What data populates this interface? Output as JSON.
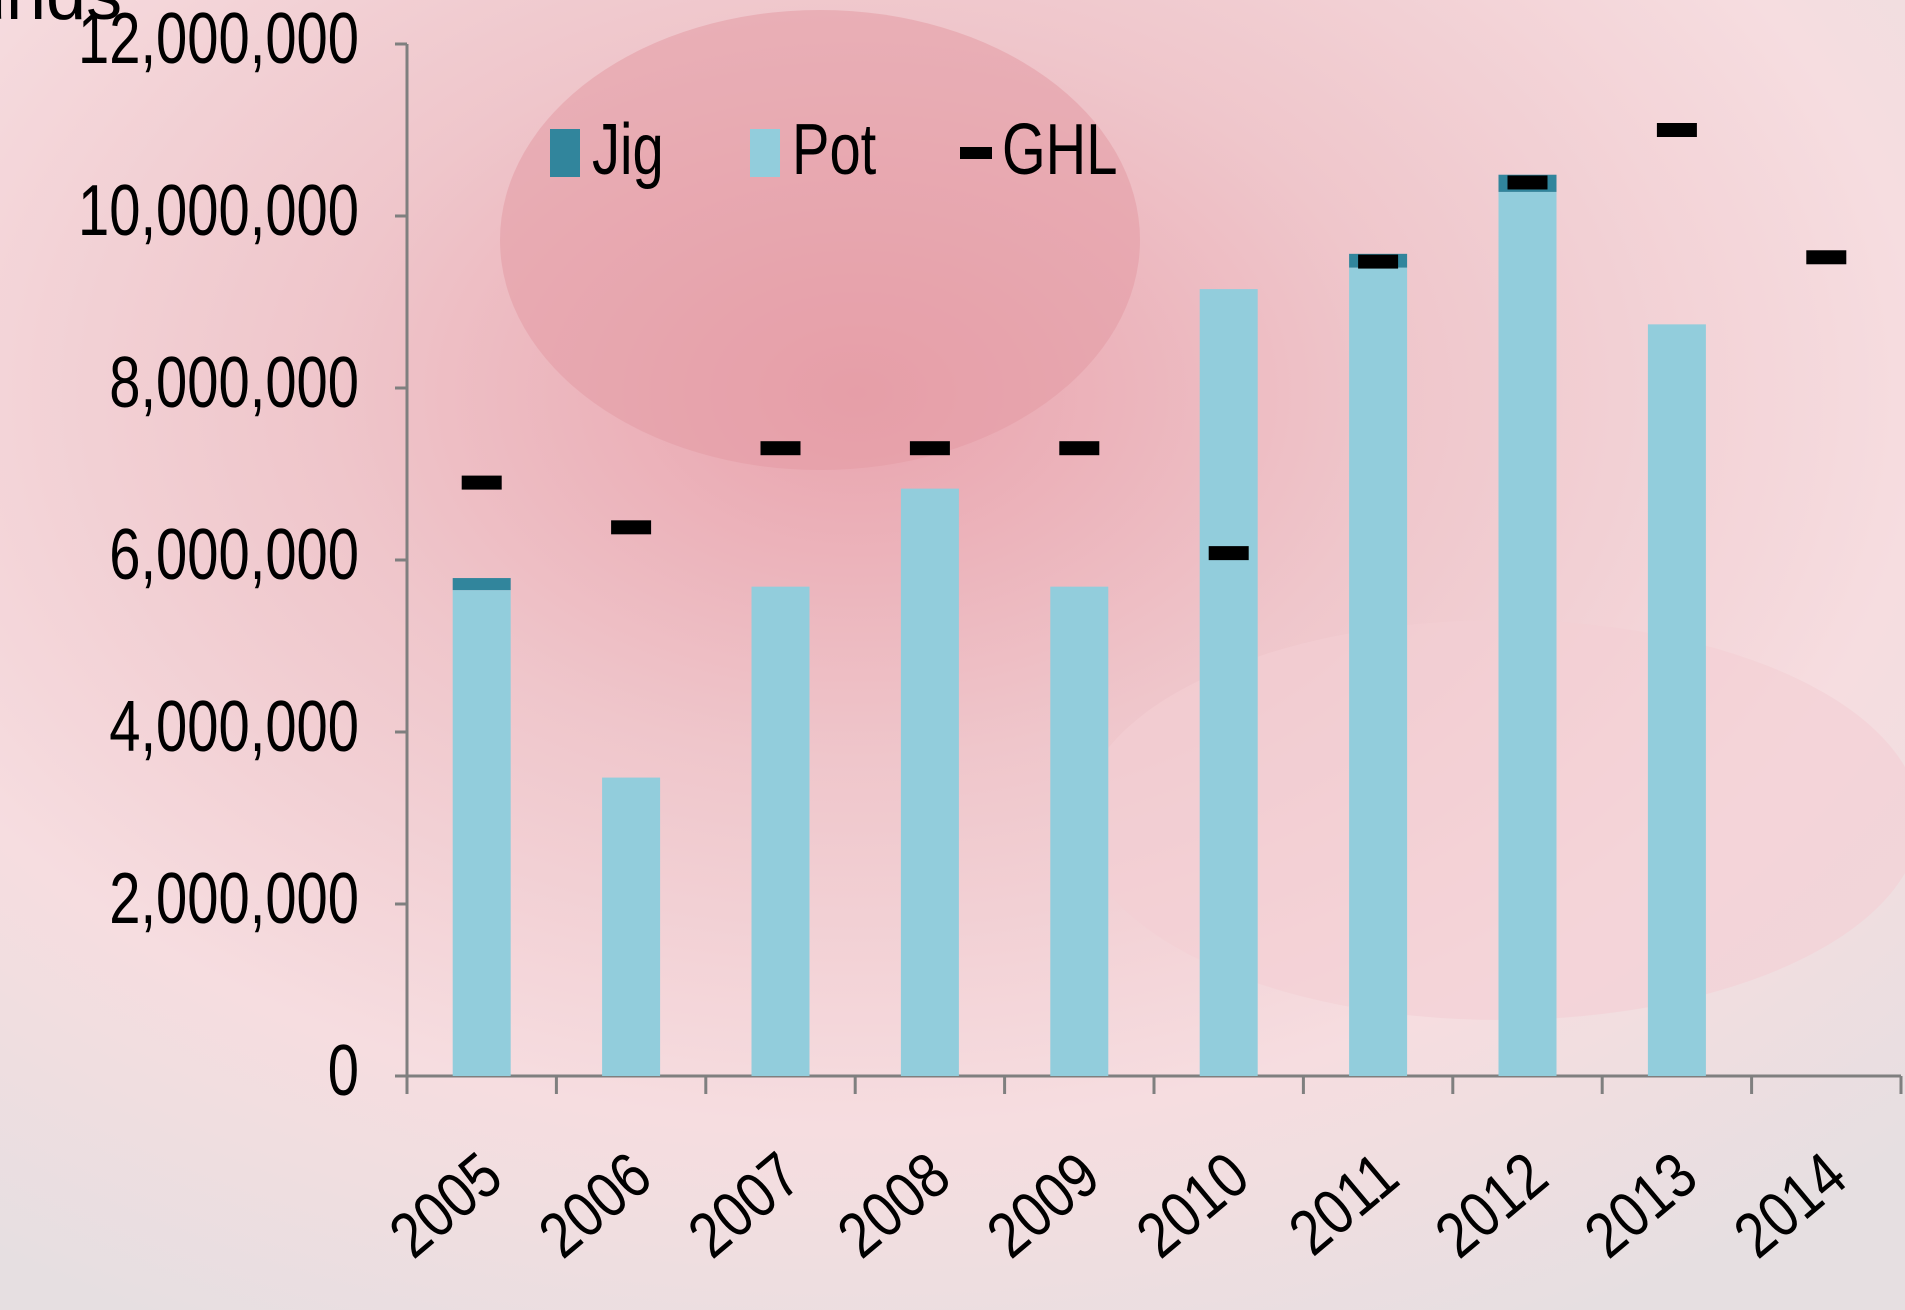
{
  "chart_data": {
    "type": "bar",
    "y_label": "Pounds",
    "categories": [
      "2005",
      "2006",
      "2007",
      "2008",
      "2009",
      "2010",
      "2011",
      "2012",
      "2013",
      "2014"
    ],
    "series": [
      {
        "name": "Jig",
        "color": "#31859c",
        "type": "bar",
        "values": [
          140000,
          0,
          0,
          0,
          0,
          0,
          160000,
          200000,
          0,
          null
        ]
      },
      {
        "name": "Pot",
        "color": "#92cddc",
        "type": "bar",
        "values": [
          5650000,
          3470000,
          5690000,
          6830000,
          5690000,
          9150000,
          9400000,
          10280000,
          8740000,
          null
        ]
      },
      {
        "name": "GHL",
        "color": "#000000",
        "type": "marker",
        "values": [
          6900000,
          6380000,
          7300000,
          7300000,
          7300000,
          6080000,
          9470000,
          10390000,
          11000000,
          9520000
        ]
      }
    ],
    "ylim": [
      0,
      12000000
    ],
    "yticks": [
      0,
      {
        "value": 2000000,
        "label": "2,000,000"
      },
      {
        "value": 4000000,
        "label": "4,000,000"
      },
      {
        "value": 6000000,
        "label": "6,000,000"
      },
      {
        "value": 8000000,
        "label": "8,000,000"
      },
      {
        "value": 10000000,
        "label": "10,000,000"
      },
      {
        "value": 12000000,
        "label": "12,000,000"
      }
    ],
    "grid": false
  }
}
